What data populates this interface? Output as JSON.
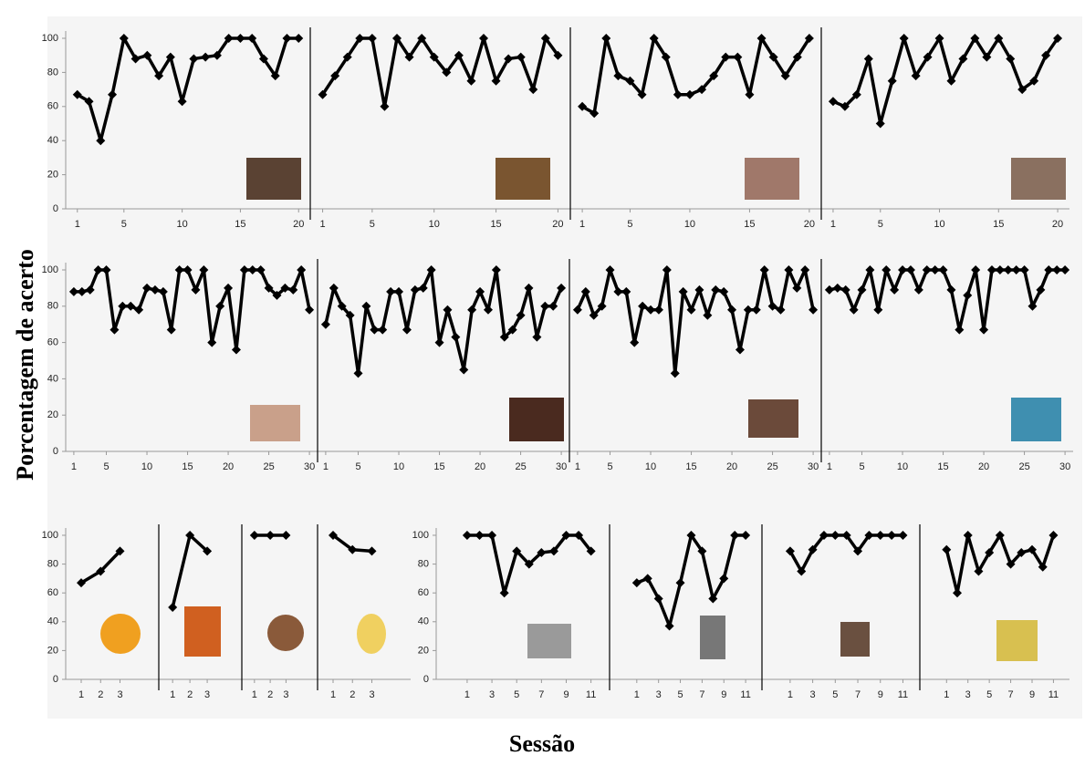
{
  "axis_labels": {
    "y": "Porcentagem de acerto",
    "x": "Sessão"
  },
  "chart_data": [
    {
      "type": "line",
      "x": [
        1,
        2,
        3,
        4,
        5,
        6,
        7,
        8,
        9,
        10,
        11,
        12,
        13,
        14,
        15,
        16,
        17,
        18,
        19,
        20
      ],
      "values": [
        67,
        63,
        40,
        67,
        100,
        88,
        90,
        78,
        89,
        63,
        88,
        89,
        90,
        100,
        100,
        100,
        88,
        78,
        100,
        100
      ],
      "color": "#000000",
      "xlim": [
        0,
        21
      ],
      "xticks": [
        1,
        5,
        10,
        15,
        20
      ],
      "ylim": [
        0,
        100
      ],
      "yticks": [
        0,
        20,
        40,
        60,
        80,
        100
      ]
    },
    {
      "type": "line",
      "x": [
        1,
        2,
        3,
        4,
        5,
        6,
        7,
        8,
        9,
        10,
        11,
        12,
        13,
        14,
        15,
        16,
        17,
        18,
        19,
        20
      ],
      "values": [
        67,
        78,
        89,
        100,
        100,
        60,
        100,
        89,
        100,
        89,
        80,
        90,
        75,
        100,
        75,
        88,
        89,
        70,
        100,
        90
      ],
      "color": "#000000",
      "xlim": [
        0,
        21
      ],
      "xticks": [
        1,
        5,
        10,
        15,
        20
      ],
      "ylim": [
        0,
        100
      ]
    },
    {
      "type": "line",
      "x": [
        1,
        2,
        3,
        4,
        5,
        6,
        7,
        8,
        9,
        10,
        11,
        12,
        13,
        14,
        15,
        16,
        17,
        18,
        19,
        20
      ],
      "values": [
        60,
        56,
        100,
        78,
        75,
        67,
        100,
        89,
        67,
        67,
        70,
        78,
        89,
        89,
        67,
        100,
        89,
        78,
        89,
        100
      ],
      "color": "#000000",
      "xlim": [
        0,
        21
      ],
      "xticks": [
        1,
        5,
        10,
        15,
        20
      ],
      "ylim": [
        0,
        100
      ]
    },
    {
      "type": "line",
      "x": [
        1,
        2,
        3,
        4,
        5,
        6,
        7,
        8,
        9,
        10,
        11,
        12,
        13,
        14,
        15,
        16,
        17,
        18,
        19,
        20
      ],
      "values": [
        63,
        60,
        67,
        88,
        50,
        75,
        100,
        78,
        89,
        100,
        75,
        88,
        100,
        89,
        100,
        88,
        70,
        75,
        90,
        100
      ],
      "color": "#000000",
      "xlim": [
        0,
        21
      ],
      "xticks": [
        1,
        5,
        10,
        15,
        20
      ],
      "ylim": [
        0,
        100
      ]
    },
    {
      "type": "line",
      "x": [
        1,
        2,
        3,
        4,
        5,
        6,
        7,
        8,
        9,
        10,
        11,
        12,
        13,
        14,
        15,
        16,
        17,
        18,
        19,
        20,
        21,
        22,
        23,
        24,
        25,
        26,
        27,
        28,
        29,
        30
      ],
      "values": [
        88,
        88,
        89,
        100,
        100,
        67,
        80,
        80,
        78,
        90,
        89,
        88,
        67,
        100,
        100,
        89,
        100,
        60,
        80,
        90,
        56,
        100,
        100,
        100,
        90,
        86,
        90,
        89,
        100,
        78
      ],
      "color": "#000000",
      "xlim": [
        0,
        31
      ],
      "xticks": [
        1,
        5,
        10,
        15,
        20,
        25,
        30
      ],
      "ylim": [
        0,
        100
      ],
      "yticks": [
        0,
        20,
        40,
        60,
        80,
        100
      ]
    },
    {
      "type": "line",
      "x": [
        1,
        2,
        3,
        4,
        5,
        6,
        7,
        8,
        9,
        10,
        11,
        12,
        13,
        14,
        15,
        16,
        17,
        18,
        19,
        20,
        21,
        22,
        23,
        24,
        25,
        26,
        27,
        28,
        29,
        30
      ],
      "values": [
        70,
        90,
        80,
        75,
        43,
        80,
        67,
        67,
        88,
        88,
        67,
        89,
        90,
        100,
        60,
        78,
        63,
        45,
        78,
        88,
        78,
        100,
        63,
        67,
        75,
        90,
        63,
        80,
        80,
        90
      ],
      "color": "#000000",
      "xlim": [
        0,
        31
      ],
      "xticks": [
        1,
        5,
        10,
        15,
        20,
        25,
        30
      ],
      "ylim": [
        0,
        100
      ]
    },
    {
      "type": "line",
      "x": [
        1,
        2,
        3,
        4,
        5,
        6,
        7,
        8,
        9,
        10,
        11,
        12,
        13,
        14,
        15,
        16,
        17,
        18,
        19,
        20,
        21,
        22,
        23,
        24,
        25,
        26,
        27,
        28,
        29,
        30
      ],
      "values": [
        78,
        88,
        75,
        80,
        100,
        88,
        88,
        60,
        80,
        78,
        78,
        100,
        43,
        88,
        78,
        89,
        75,
        89,
        88,
        78,
        56,
        78,
        78,
        100,
        80,
        78,
        100,
        90,
        100,
        78
      ],
      "color": "#000000",
      "xlim": [
        0,
        31
      ],
      "xticks": [
        1,
        5,
        10,
        15,
        20,
        25,
        30
      ],
      "ylim": [
        0,
        100
      ]
    },
    {
      "type": "line",
      "x": [
        1,
        2,
        3,
        4,
        5,
        6,
        7,
        8,
        9,
        10,
        11,
        12,
        13,
        14,
        15,
        16,
        17,
        18,
        19,
        20,
        21,
        22,
        23,
        24,
        25,
        26,
        27,
        28,
        29,
        30
      ],
      "values": [
        89,
        90,
        89,
        78,
        89,
        100,
        78,
        100,
        89,
        100,
        100,
        89,
        100,
        100,
        100,
        89,
        67,
        86,
        100,
        67,
        100,
        100,
        100,
        100,
        100,
        80,
        89,
        100,
        100,
        100
      ],
      "color": "#000000",
      "xlim": [
        0,
        31
      ],
      "xticks": [
        1,
        5,
        10,
        15,
        20,
        25,
        30
      ],
      "ylim": [
        0,
        100
      ]
    },
    {
      "type": "line",
      "x": [
        1,
        2,
        3
      ],
      "values": [
        67,
        75,
        89
      ],
      "color": "#000000",
      "xlim": [
        0.2,
        5
      ],
      "xticks": [
        1,
        2,
        3
      ],
      "ylim": [
        0,
        100
      ],
      "yticks": [
        0,
        20,
        40,
        60,
        80,
        100
      ]
    },
    {
      "type": "line",
      "x": [
        1,
        2,
        3
      ],
      "values": [
        50,
        100,
        89
      ],
      "color": "#000000",
      "xlim": [
        0.2,
        5
      ],
      "xticks": [
        1,
        2,
        3
      ],
      "ylim": [
        0,
        100
      ]
    },
    {
      "type": "line",
      "x": [
        1,
        2,
        3
      ],
      "values": [
        100,
        100,
        100
      ],
      "color": "#000000",
      "xlim": [
        0.2,
        5
      ],
      "xticks": [
        1,
        2,
        3
      ],
      "ylim": [
        0,
        100
      ]
    },
    {
      "type": "line",
      "x": [
        1,
        2,
        3
      ],
      "values": [
        100,
        90,
        89
      ],
      "color": "#000000",
      "xlim": [
        0.2,
        5
      ],
      "xticks": [
        1,
        2,
        3
      ],
      "ylim": [
        0,
        100
      ]
    },
    {
      "type": "line",
      "x": [
        1,
        2,
        3,
        4,
        5,
        6,
        7,
        8,
        9,
        10,
        11
      ],
      "values": [
        100,
        100,
        100,
        60,
        89,
        80,
        88,
        89,
        100,
        100,
        89
      ],
      "color": "#000000",
      "xlim": [
        -1.5,
        12.5
      ],
      "xticks": [
        1,
        3,
        5,
        7,
        9,
        11
      ],
      "ylim": [
        0,
        100
      ],
      "yticks": [
        0,
        20,
        40,
        60,
        80,
        100
      ]
    },
    {
      "type": "line",
      "x": [
        1,
        2,
        3,
        4,
        5,
        6,
        7,
        8,
        9,
        10,
        11
      ],
      "values": [
        67,
        70,
        56,
        37,
        67,
        100,
        89,
        56,
        70,
        100,
        100
      ],
      "color": "#000000",
      "xlim": [
        -1.5,
        12.5
      ],
      "xticks": [
        1,
        3,
        5,
        7,
        9,
        11
      ],
      "ylim": [
        0,
        100
      ]
    },
    {
      "type": "line",
      "x": [
        1,
        2,
        3,
        4,
        5,
        6,
        7,
        8,
        9,
        10,
        11
      ],
      "values": [
        89,
        75,
        90,
        100,
        100,
        100,
        89,
        100,
        100,
        100,
        100
      ],
      "color": "#000000",
      "xlim": [
        -1.5,
        12.5
      ],
      "xticks": [
        1,
        3,
        5,
        7,
        9,
        11
      ],
      "ylim": [
        0,
        100
      ]
    },
    {
      "type": "line",
      "x": [
        1,
        2,
        3,
        4,
        5,
        6,
        7,
        8,
        9,
        10,
        11
      ],
      "values": [
        90,
        60,
        100,
        75,
        88,
        100,
        80,
        88,
        90,
        78,
        100
      ],
      "color": "#000000",
      "xlim": [
        -1.5,
        12.5
      ],
      "xticks": [
        1,
        3,
        5,
        7,
        9,
        11
      ],
      "ylim": [
        0,
        100
      ]
    }
  ]
}
